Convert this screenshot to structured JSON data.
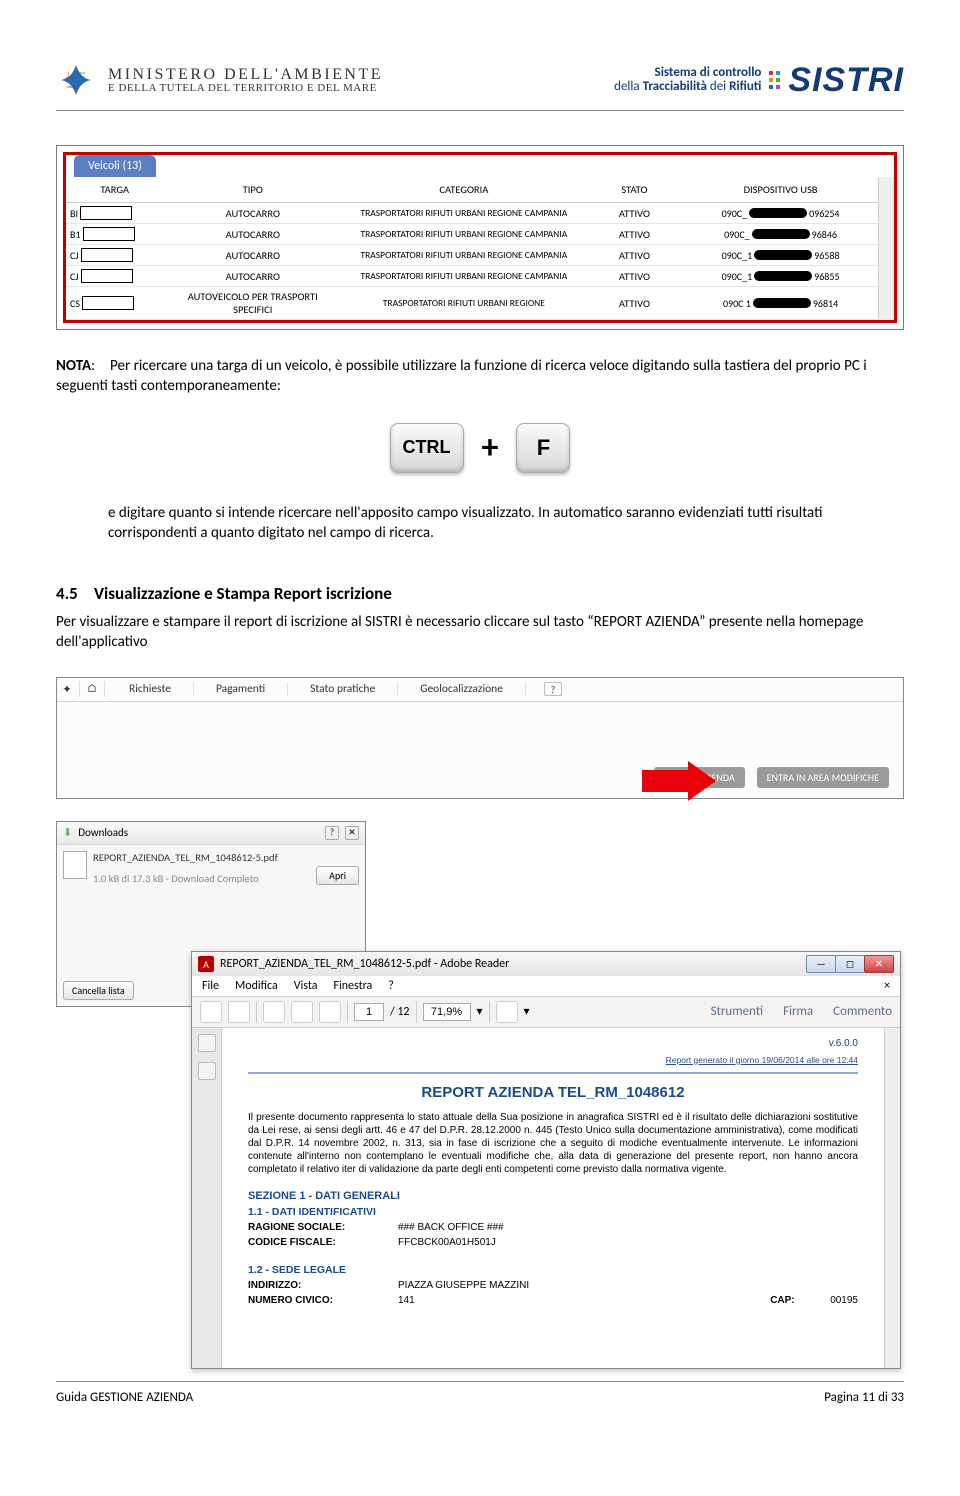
{
  "header": {
    "ministero_line1": "MINISTERO DELL'AMBIENTE",
    "ministero_line2": "E DELLA TUTELA DEL TERRITORIO E DEL MARE",
    "slogan_line1_a": "Sistema di controllo",
    "slogan_line2_a": "della ",
    "slogan_line2_b": "Tracciabilità",
    "slogan_line2_c": " dei ",
    "slogan_line2_d": "Rifiuti",
    "sistri": "SISTRI",
    "dot_colors": [
      "#d33",
      "#39a",
      "#d90",
      "#5a3",
      "#26b",
      "#b4b"
    ]
  },
  "veicoli": {
    "tab": "Veicoli (13)",
    "cols": [
      "TARGA",
      "TIPO",
      "CATEGORIA",
      "STATO",
      "DISPOSITIVO USB"
    ],
    "rows": [
      {
        "p": "BI",
        "tipo": "AUTOCARRO",
        "cat": "TRASPORTATORI RIFIUTI URBANI REGIONE CAMPANIA",
        "stato": "ATTIVO",
        "usb1": "090C_",
        "usb2": "096254"
      },
      {
        "p": "B1",
        "tipo": "AUTOCARRO",
        "cat": "TRASPORTATORI RIFIUTI URBANI REGIONE CAMPANIA",
        "stato": "ATTIVO",
        "usb1": "090C_",
        "usb2": "96846"
      },
      {
        "p": "CJ",
        "tipo": "AUTOCARRO",
        "cat": "TRASPORTATORI RIFIUTI URBANI REGIONE CAMPANIA",
        "stato": "ATTIVO",
        "usb1": "090C_1",
        "usb2": "96588"
      },
      {
        "p": "CJ",
        "tipo": "AUTOCARRO",
        "cat": "TRASPORTATORI RIFIUTI URBANI REGIONE CAMPANIA",
        "stato": "ATTIVO",
        "usb1": "090C_1",
        "usb2": "96855"
      },
      {
        "p": "CS",
        "tipo": "AUTOVEICOLO PER TRASPORTI SPECIFICI",
        "cat": "TRASPORTATORI RIFIUTI URBANI REGIONE",
        "stato": "ATTIVO",
        "usb1": "090C 1",
        "usb2": "96814"
      }
    ]
  },
  "note": {
    "label": "NOTA",
    "text1": ": Per ricercare una targa di un veicolo, è possibile utilizzare la funzione di ricerca veloce digitando sulla tastiera del proprio PC i seguenti tasti contemporaneamente:",
    "ctrl": "CTRL",
    "plus": "+",
    "f": "F",
    "text2": "e digitare quanto si intende ricercare nell'apposito campo visualizzato. In automatico saranno evidenziati tutti risultati corrispondenti a quanto digitato nel campo di ricerca."
  },
  "section45": {
    "num": "4.5",
    "title": "Visualizzazione e Stampa Report iscrizione",
    "para": "Per visualizzare e stampare il report di iscrizione al SISTRI è necessario cliccare sul tasto “REPORT AZIENDA” presente nella homepage dell'applicativo"
  },
  "nav": {
    "items": [
      "Richieste",
      "Pagamenti",
      "Stato pratiche",
      "Geolocalizzazione"
    ],
    "help": "?",
    "btn1": "REPORT AZIENDA",
    "btn2": "ENTRA IN AREA MODIFICHE"
  },
  "downloads": {
    "title": "Downloads",
    "pin": "?",
    "close": "✕",
    "filename": "REPORT_AZIENDA_TEL_RM_1048612-5.pdf",
    "apri": "Apri",
    "sub": "1.0 kB di 17.3 kB - Download Completo",
    "cancel": "Cancella lista"
  },
  "reader": {
    "title": "REPORT_AZIENDA_TEL_RM_1048612-5.pdf - Adobe Reader",
    "menu": [
      "File",
      "Modifica",
      "Vista",
      "Finestra",
      "?"
    ],
    "page": "1",
    "pages": "/ 12",
    "zoom": "71,9%",
    "tab_tools": "Strumenti",
    "tab_sign": "Firma",
    "tab_comment": "Commento",
    "version": "v.6.0.0",
    "timestamp": "Report generato il giorno 19/06/2014 alle ore 12:44",
    "doc_title": "REPORT AZIENDA TEL_RM_1048612",
    "doc_para": "Il presente documento rappresenta lo stato attuale della Sua posizione in anagrafica SISTRI ed è il risultato delle dichiarazioni sostitutive da Lei rese, ai sensi degli artt. 46 e 47 del D.P.R. 28.12.2000 n. 445 (Testo Unico sulla documentazione amministrativa), come modificati dal D.P.R. 14 novembre 2002, n. 313, sia in fase di iscrizione che a seguito di modiche eventualmente intervenute. Le informazioni contenute all'interno non contemplano le eventuali modifiche che, alla data di generazione del presente report, non hanno ancora completato il relativo iter di validazione da parte degli enti competenti come previsto dalla normativa vigente.",
    "sec1": "SEZIONE 1 - DATI GENERALI",
    "sub11": "1.1 - DATI IDENTIFICATIVI",
    "kv": [
      {
        "k": "RAGIONE SOCIALE:",
        "v": "### BACK OFFICE ###"
      },
      {
        "k": "CODICE FISCALE:",
        "v": "FFCBCK00A01H501J"
      }
    ],
    "sub12": "1.2 - SEDE LEGALE",
    "kv2": [
      {
        "k": "INDIRIZZO:",
        "v": "PIAZZA GIUSEPPE MAZZINI"
      },
      {
        "k": "NUMERO CIVICO:",
        "v": "141",
        "k2": "CAP:",
        "v2": "00195"
      }
    ]
  },
  "footer": {
    "left": "Guida GESTIONE AZIENDA",
    "right": "Pagina 11 di 33"
  }
}
